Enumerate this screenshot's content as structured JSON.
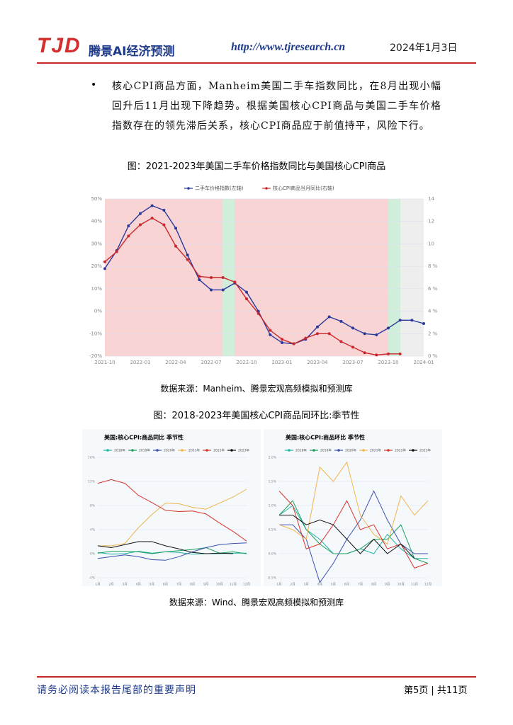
{
  "header": {
    "logo": "TJD",
    "brand": "腾景AI经济预测",
    "url": "http://www.tjresearch.cn",
    "date": "2024年1月3日"
  },
  "body": {
    "bullet": "•",
    "paragraph": "核心CPI商品方面，Manheim美国二手车指数同比，在8月出现小幅回升后11月出现下降趋势。根据美国核心CPI商品与美国二手车价格指数存在的领先滞后关系，核心CPI商品应于前值持平，风险下行。"
  },
  "figures": [
    {
      "caption": "图：2021-2023年美国二手车价格指数同比与美国核心CPI商品",
      "source": "数据来源：Manheim、腾景宏观高频模拟和预测库",
      "chart_data": {
        "type": "line",
        "categories": [
          "2021-10",
          null,
          null,
          "2022-01",
          null,
          null,
          "2022-04",
          null,
          null,
          "2022-07",
          null,
          null,
          "2022-10",
          null,
          null,
          "2023-01",
          null,
          null,
          "2023-04",
          null,
          null,
          "2023-07",
          null,
          null,
          "2023-10",
          null,
          null,
          "2024-01"
        ],
        "series": [
          {
            "name": "二手车价格指数(左轴)",
            "color": "#2b3a9a",
            "values": [
              19,
              27,
              38,
              43.5,
              47,
              45,
              37,
              25,
              14,
              9.5,
              9.5,
              12.5,
              8.5,
              0,
              -10.5,
              -14,
              -14.5,
              -12.5,
              -7,
              -2.5,
              -4.5,
              -7.5,
              -10,
              -10.5,
              -7.5,
              -4,
              -4,
              -5.5
            ]
          },
          {
            "name": "核心CPI商品当月同比(右轴)",
            "color": "#c8282d",
            "axis": "y2",
            "values": [
              8.4,
              9.3,
              10.7,
              11.7,
              12.3,
              11.7,
              9.8,
              8.6,
              7.1,
              7.0,
              7.0,
              6.6,
              5.1,
              3.8,
              2.3,
              1.5,
              1.1,
              1.6,
              2.0,
              2.0,
              1.3,
              0.8,
              0.3,
              0.1,
              0.2,
              0.2,
              null,
              null
            ]
          }
        ],
        "ylim": [
          -20,
          50
        ],
        "yticks": [
          {
            "value": -20,
            "label": "-20%"
          },
          {
            "value": -10,
            "label": "-10%"
          },
          {
            "value": 0,
            "label": "0%"
          },
          {
            "value": 10,
            "label": "10%"
          },
          {
            "value": 20,
            "label": "20%"
          },
          {
            "value": 30,
            "label": "30%"
          },
          {
            "value": 40,
            "label": "40%"
          },
          {
            "value": 50,
            "label": "50%"
          }
        ],
        "y2lim": [
          0,
          14
        ],
        "y2ticks": [
          {
            "value": 0,
            "label": "0 %"
          },
          {
            "value": 2,
            "label": "2 %"
          },
          {
            "value": 4,
            "label": "4 %"
          },
          {
            "value": 6,
            "label": "6 %"
          },
          {
            "value": 8,
            "label": "8 %"
          },
          10,
          12,
          14
        ],
        "grid": true,
        "markers": true,
        "legend": "top"
      }
    },
    {
      "caption": "图：2018-2023年美国核心CPI商品同环比:季节性",
      "source": "数据来源：Wind、腾景宏观高频模拟和预测库",
      "chart_data": [
        {
          "type": "line",
          "title": "美国:核心CPI:商品同比 季节性",
          "categories": [
            "1月",
            "2月",
            "3月",
            "4月",
            "5月",
            "6月",
            "7月",
            "8月",
            "9月",
            "10月",
            "11月",
            "12月"
          ],
          "series": [
            {
              "name": "2018年",
              "color": "#1fb5a5",
              "values": [
                0.2,
                -0.1,
                0.0,
                0.4,
                0.1,
                0.3,
                0.2,
                -0.1,
                0.0,
                0.0,
                0.1,
                0.1
              ]
            },
            {
              "name": "2019年",
              "color": "#1f9e5a",
              "values": [
                0.1,
                0.4,
                0.4,
                0.3,
                0.0,
                0.3,
                0.5,
                0.7,
                1.0,
                0.1,
                0.3,
                0.0
              ]
            },
            {
              "name": "2020年",
              "color": "#3b4fb0",
              "values": [
                -0.8,
                -0.5,
                -0.2,
                -0.5,
                -1.0,
                -1.1,
                -0.5,
                0.3,
                1.0,
                1.5,
                1.7,
                1.8
              ]
            },
            {
              "name": "2021年",
              "color": "#f0b44c",
              "values": [
                1.3,
                1.3,
                1.7,
                4.3,
                6.5,
                8.4,
                8.3,
                7.7,
                7.4,
                8.4,
                9.4,
                10.7
              ]
            },
            {
              "name": "2022年",
              "color": "#d9342b",
              "values": [
                11.7,
                12.3,
                11.7,
                9.7,
                8.5,
                7.2,
                7.0,
                7.1,
                6.6,
                5.1,
                3.7,
                2.1
              ]
            },
            {
              "name": "2023年",
              "color": "#111111",
              "values": [
                1.3,
                1.0,
                1.5,
                2.0,
                2.0,
                1.3,
                0.8,
                0.2,
                0.0,
                0.1,
                0.0,
                null
              ]
            }
          ],
          "ylim": [
            -4,
            16
          ],
          "yticks": [
            {
              "value": -4,
              "label": "-4%"
            },
            {
              "value": 0,
              "label": "0%"
            },
            {
              "value": 4,
              "label": "4%"
            },
            {
              "value": 8,
              "label": "8%"
            },
            {
              "value": 12,
              "label": "12%"
            },
            {
              "value": 16,
              "label": "16%"
            }
          ],
          "grid": true,
          "legend": "top"
        },
        {
          "type": "line",
          "title": "美国:核心CPI:商品环比 季节性",
          "categories": [
            "1月",
            "2月",
            "3月",
            "4月",
            "5月",
            "6月",
            "7月",
            "8月",
            "9月",
            "10月",
            "11月",
            "12月"
          ],
          "series": [
            {
              "name": "2018年",
              "color": "#1fb5a5",
              "values": [
                0.8,
                1.0,
                0.5,
                0.3,
                0.0,
                0.0,
                0.1,
                0.0,
                0.4,
                0.1,
                -0.1,
                -0.1
              ]
            },
            {
              "name": "2019年",
              "color": "#1f9e5a",
              "values": [
                0.8,
                1.1,
                0.5,
                0.2,
                0.0,
                0.0,
                0.1,
                0.3,
                0.3,
                0.6,
                -0.1,
                -0.2
              ]
            },
            {
              "name": "2020年",
              "color": "#3b4fb0",
              "values": [
                0.6,
                0.6,
                0.3,
                -0.6,
                -0.2,
                0.3,
                0.7,
                1.3,
                0.7,
                0.2,
                0.0,
                0.0
              ]
            },
            {
              "name": "2021年",
              "color": "#f0b44c",
              "values": [
                0.6,
                0.5,
                0.3,
                1.8,
                1.5,
                1.9,
                0.8,
                0.4,
                0.2,
                1.2,
                0.8,
                1.1
              ]
            },
            {
              "name": "2022年",
              "color": "#d9342b",
              "values": [
                1.3,
                1.0,
                0.1,
                0.2,
                0.6,
                1.1,
                0.5,
                0.6,
                0.1,
                0.2,
                -0.3,
                -0.2
              ]
            },
            {
              "name": "2023年",
              "color": "#111111",
              "values": [
                0.8,
                0.8,
                0.6,
                0.7,
                0.6,
                0.3,
                0.0,
                0.3,
                0.0,
                0.2,
                -0.1,
                null
              ]
            }
          ],
          "ylim": [
            -0.5,
            2
          ],
          "yticks": [
            {
              "value": -0.5,
              "label": "-0.5%"
            },
            {
              "value": 0,
              "label": "0.0%"
            },
            {
              "value": 0.5,
              "label": "0.5%"
            },
            {
              "value": 1,
              "label": "1.0%"
            },
            {
              "value": 1.5,
              "label": "1.5%"
            },
            {
              "value": 2,
              "label": "2.0%"
            }
          ],
          "grid": true,
          "legend": "top"
        }
      ]
    }
  ]
}
